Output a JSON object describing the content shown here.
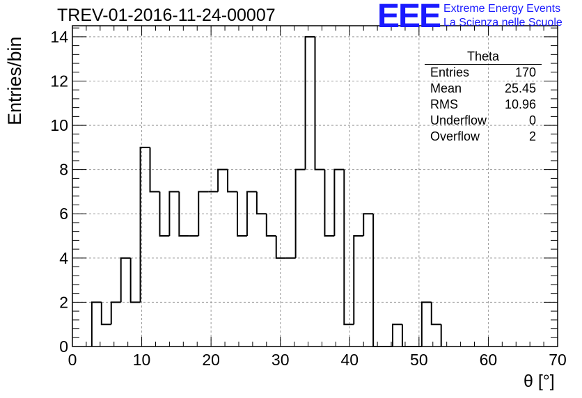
{
  "header": {
    "title": "TREV-01-2016-11-24-00007",
    "logo_text": "EEE",
    "logo_line1": "Extreme Energy Events",
    "logo_line2": "La Scienza nelle Scuole"
  },
  "stats_box": {
    "title": "Theta",
    "rows": [
      {
        "label": "Entries",
        "value": "170"
      },
      {
        "label": "Mean",
        "value": "25.45"
      },
      {
        "label": "RMS",
        "value": "10.96"
      },
      {
        "label": "Underflow",
        "value": "0"
      },
      {
        "label": "Overflow",
        "value": "2"
      }
    ]
  },
  "chart_data": {
    "type": "bar",
    "style": "step-histogram",
    "xlabel": "θ [°]",
    "ylabel": "Entries/bin",
    "xlim": [
      0,
      70
    ],
    "ylim": [
      0,
      14.5
    ],
    "xticks": [
      0,
      10,
      20,
      30,
      40,
      50,
      60,
      70
    ],
    "yticks": [
      0,
      2,
      4,
      6,
      8,
      10,
      12,
      14
    ],
    "grid": true,
    "bin_width": 1.4,
    "bin_edges_start": 2.8,
    "values": [
      2,
      1,
      2,
      4,
      2,
      9,
      7,
      5,
      7,
      5,
      5,
      7,
      7,
      8,
      7,
      5,
      7,
      6,
      5,
      4,
      4,
      8,
      14,
      8,
      5,
      8,
      1,
      5,
      6,
      0,
      0,
      1,
      0,
      0,
      2,
      1
    ]
  }
}
